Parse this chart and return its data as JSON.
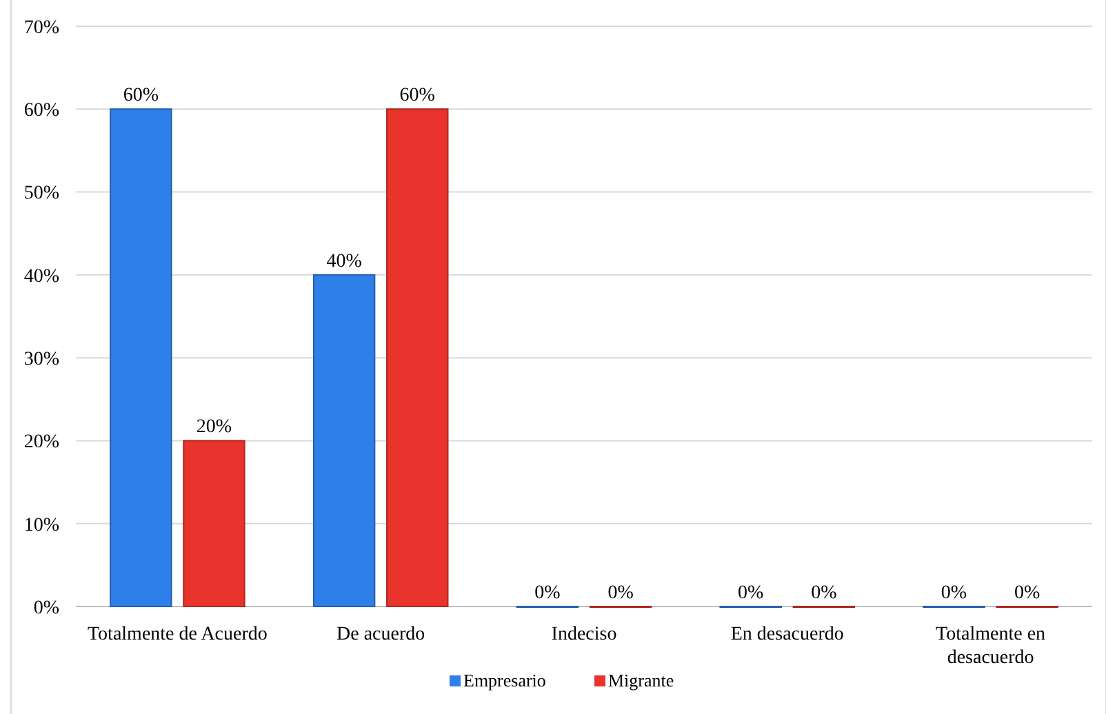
{
  "chart_data": {
    "type": "bar",
    "categories": [
      "Totalmente de Acuerdo",
      "De acuerdo",
      "Indeciso",
      "En desacuerdo",
      "Totalmente en desacuerdo"
    ],
    "series": [
      {
        "name": "Empresario",
        "color": "#2f7fe8",
        "values": [
          60,
          40,
          0,
          0,
          0
        ]
      },
      {
        "name": "Migrante",
        "color": "#e8342c",
        "values": [
          20,
          60,
          0,
          0,
          0
        ]
      }
    ],
    "ylim": [
      0,
      70
    ],
    "yticks": [
      {
        "value": 0,
        "label": "0%"
      },
      {
        "value": 10,
        "label": "10%"
      },
      {
        "value": 20,
        "label": "20%"
      },
      {
        "value": 30,
        "label": "30%"
      },
      {
        "value": 40,
        "label": "40%"
      },
      {
        "value": 50,
        "label": "50%"
      },
      {
        "value": 60,
        "label": "60%"
      },
      {
        "value": 70,
        "label": "70%"
      }
    ],
    "value_labels": [
      [
        "60%",
        "40%",
        "0%",
        "0%",
        "0%"
      ],
      [
        "20%",
        "60%",
        "0%",
        "0%",
        "0%"
      ]
    ],
    "grid": "y",
    "legend": "bottom"
  }
}
